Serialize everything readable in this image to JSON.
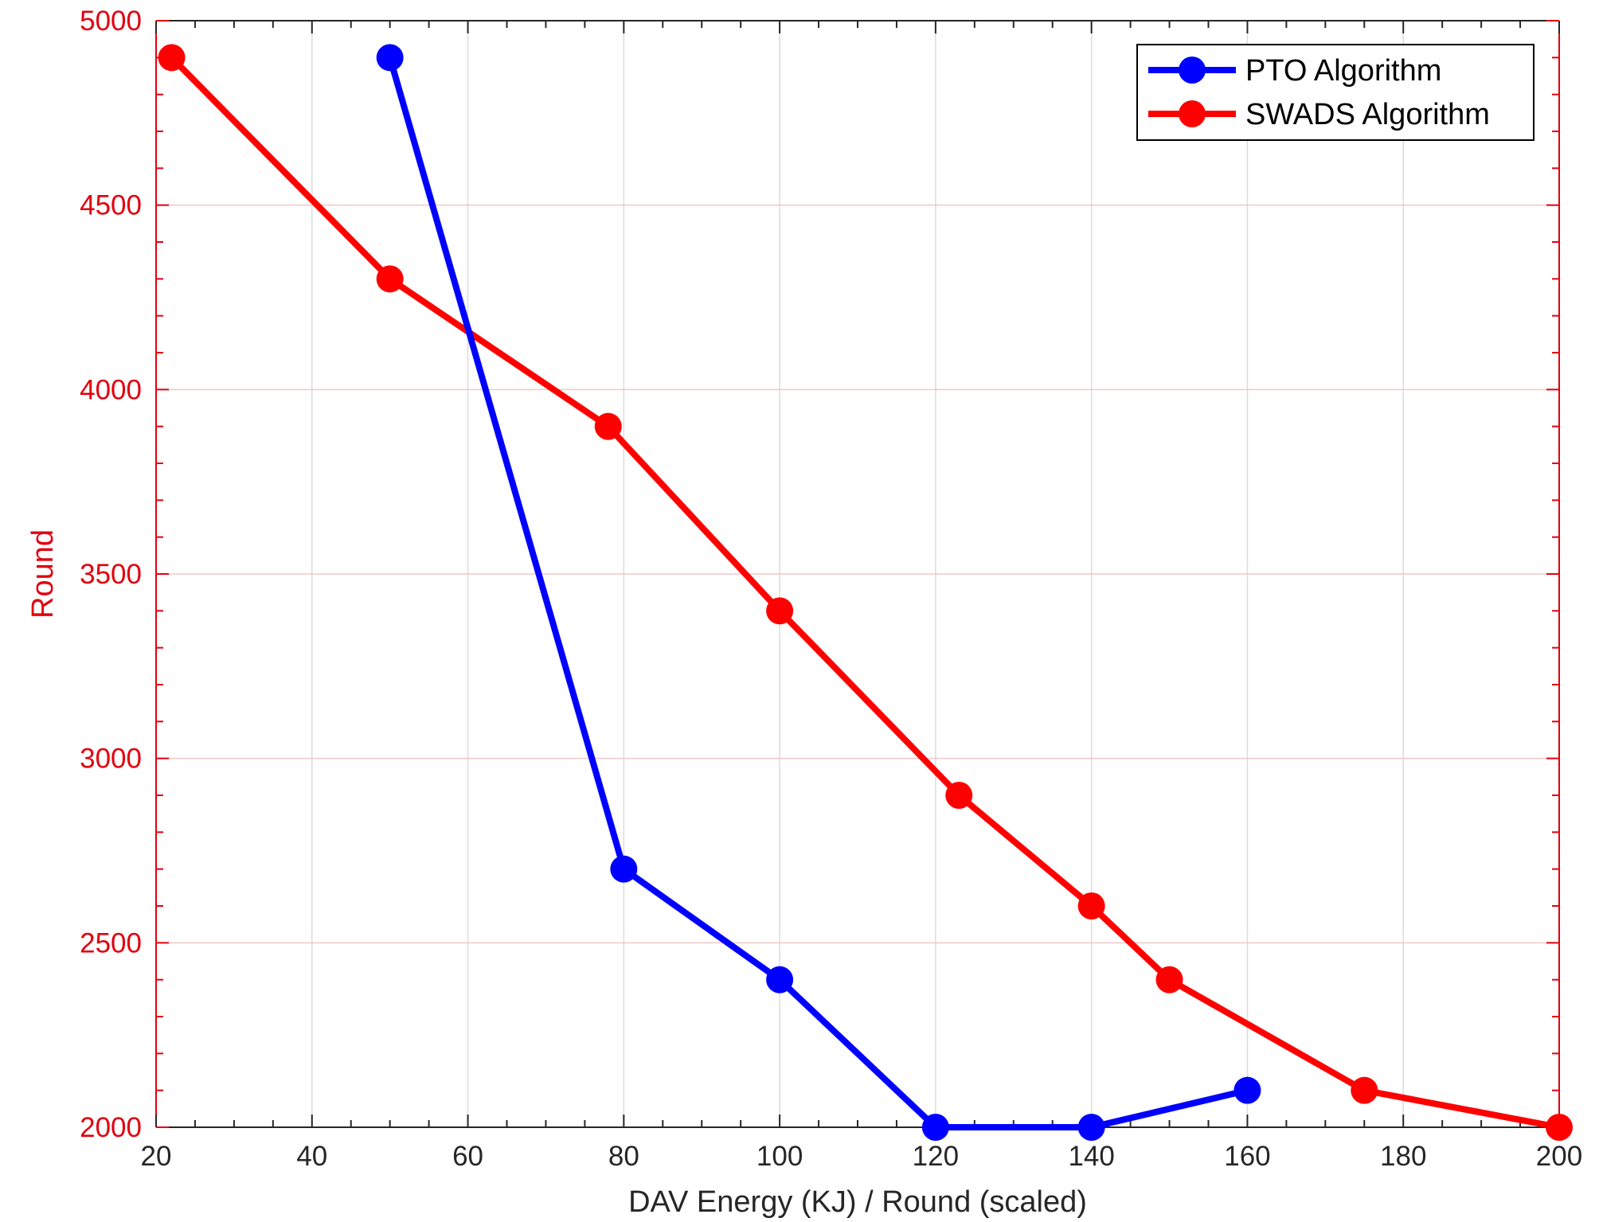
{
  "chart_data": {
    "type": "line",
    "title": "",
    "xlabel": "DAV Energy (KJ) / Round (scaled)",
    "ylabel": "Round",
    "xlim": [
      20,
      200
    ],
    "ylim": [
      2000,
      5000
    ],
    "x_ticks": [
      20,
      40,
      60,
      80,
      100,
      120,
      140,
      160,
      180,
      200
    ],
    "y_ticks": [
      2000,
      2500,
      3000,
      3500,
      4000,
      4500,
      5000
    ],
    "x_tick_labels": [
      "20",
      "40",
      "60",
      "80",
      "100",
      "120",
      "140",
      "160",
      "180",
      "200"
    ],
    "y_tick_labels": [
      "2000",
      "2500",
      "3000",
      "3500",
      "4000",
      "4500",
      "5000"
    ],
    "grid": true,
    "legend_position": "top-right",
    "y_axis_color": "#e3000f",
    "x_axis_color": "#262626",
    "series": [
      {
        "name": "PTO Algorithm",
        "color": "#0000ff",
        "marker": "circle",
        "points": [
          {
            "x": 50,
            "y": 4900
          },
          {
            "x": 80,
            "y": 2700
          },
          {
            "x": 100,
            "y": 2400
          },
          {
            "x": 120,
            "y": 2000
          },
          {
            "x": 140,
            "y": 2000
          },
          {
            "x": 160,
            "y": 2100
          }
        ]
      },
      {
        "name": "SWADS Algorithm",
        "color": "#ff0000",
        "marker": "circle",
        "points": [
          {
            "x": 22,
            "y": 4900
          },
          {
            "x": 50,
            "y": 4300
          },
          {
            "x": 78,
            "y": 3900
          },
          {
            "x": 100,
            "y": 3400
          },
          {
            "x": 123,
            "y": 2900
          },
          {
            "x": 140,
            "y": 2600
          },
          {
            "x": 150,
            "y": 2400
          },
          {
            "x": 175,
            "y": 2100
          },
          {
            "x": 200,
            "y": 2000
          }
        ]
      }
    ]
  }
}
